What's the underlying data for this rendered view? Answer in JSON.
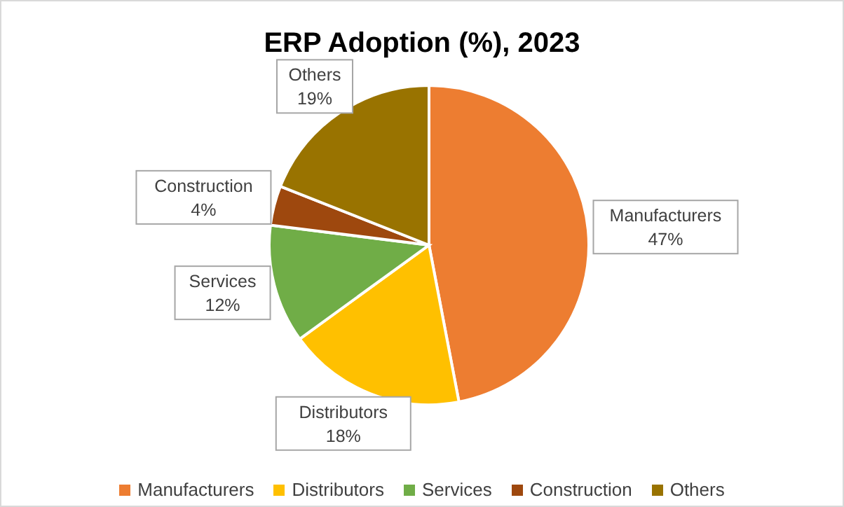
{
  "chart_data": {
    "type": "pie",
    "title": "ERP Adoption (%), 2023",
    "categories": [
      "Manufacturers",
      "Distributors",
      "Services",
      "Construction",
      "Others"
    ],
    "values": [
      47,
      18,
      12,
      4,
      19
    ],
    "value_labels": [
      "47%",
      "18%",
      "12%",
      "4%",
      "19%"
    ],
    "colors": [
      "#ed7d31",
      "#ffc000",
      "#70ad47",
      "#9e480e",
      "#997300"
    ],
    "legend": "bottom"
  }
}
